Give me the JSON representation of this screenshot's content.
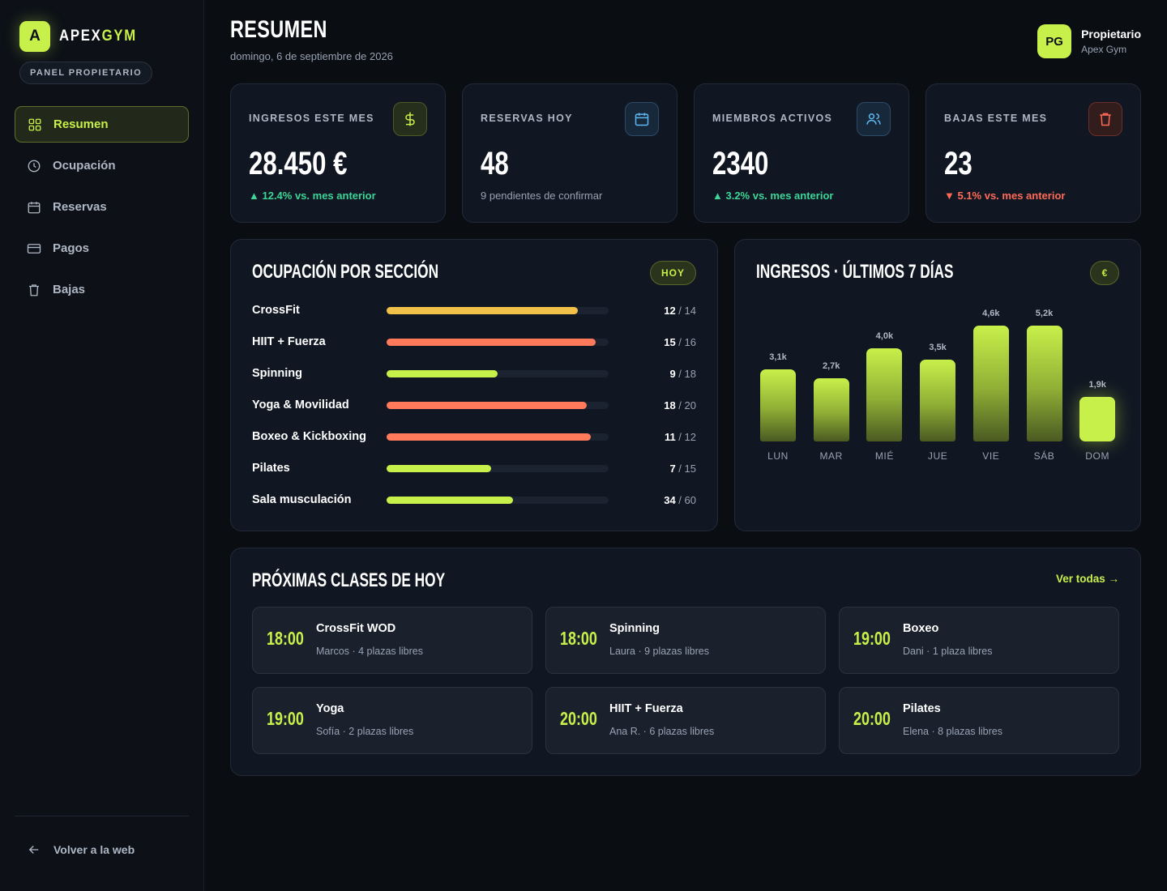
{
  "brand": {
    "mark": "A",
    "name_part1": "APEX",
    "name_part2": "GYM",
    "panel_label": "PANEL PROPIETARIO"
  },
  "nav": {
    "items": [
      {
        "label": "Resumen",
        "icon": "grid-icon",
        "active": true
      },
      {
        "label": "Ocupación",
        "icon": "clock-icon",
        "active": false
      },
      {
        "label": "Reservas",
        "icon": "calendar-icon",
        "active": false
      },
      {
        "label": "Pagos",
        "icon": "card-icon",
        "active": false
      },
      {
        "label": "Bajas",
        "icon": "trash-icon",
        "active": false
      }
    ],
    "back_label": "Volver a la web"
  },
  "header": {
    "title": "RESUMEN",
    "date": "domingo, 6 de septiembre de 2026",
    "owner_initials": "PG",
    "owner_role": "Propietario",
    "owner_gym": "Apex Gym"
  },
  "stats": [
    {
      "label": "INGRESOS ESTE MES",
      "value": "28.450 €",
      "delta": "12.4% vs. mes anterior",
      "trend": "up",
      "icon": "dollar-icon",
      "color": "#c8f04a"
    },
    {
      "label": "RESERVAS HOY",
      "value": "48",
      "sub": "9 pendientes de confirmar",
      "icon": "calendar-icon",
      "color": "#5db8f0"
    },
    {
      "label": "MIEMBROS ACTIVOS",
      "value": "2340",
      "delta": "3.2% vs. mes anterior",
      "trend": "up",
      "icon": "users-icon",
      "color": "#5db8f0"
    },
    {
      "label": "BAJAS ESTE MES",
      "value": "23",
      "delta": "5.1% vs. mes anterior",
      "trend": "down",
      "icon": "trash-icon",
      "color": "#ff6b57"
    }
  ],
  "occupancy": {
    "title": "OCUPACIÓN POR SECCIÓN",
    "badge": "HOY",
    "rows": [
      {
        "name": "CrossFit",
        "used": "12",
        "total": "14",
        "ratio": 0.86,
        "color": "#f2c14a"
      },
      {
        "name": "HIIT + Fuerza",
        "used": "15",
        "total": "16",
        "ratio": 0.94,
        "color": "#ff7a5a"
      },
      {
        "name": "Spinning",
        "used": "9",
        "total": "18",
        "ratio": 0.5,
        "color": "#c8f04a"
      },
      {
        "name": "Yoga & Movilidad",
        "used": "18",
        "total": "20",
        "ratio": 0.9,
        "color": "#ff7a5a"
      },
      {
        "name": "Boxeo & Kickboxing",
        "used": "11",
        "total": "12",
        "ratio": 0.92,
        "color": "#ff7a5a"
      },
      {
        "name": "Pilates",
        "used": "7",
        "total": "15",
        "ratio": 0.47,
        "color": "#c8f04a"
      },
      {
        "name": "Sala musculación",
        "used": "34",
        "total": "60",
        "ratio": 0.57,
        "color": "#c8f04a"
      }
    ]
  },
  "revenue": {
    "title": "INGRESOS · ÚLTIMOS 7 DÍAS",
    "badge": "€",
    "chart_data": {
      "type": "bar",
      "categories": [
        "LUN",
        "MAR",
        "MIÉ",
        "JUE",
        "VIE",
        "SÁB",
        "DOM"
      ],
      "values": [
        3.1,
        2.7,
        4.0,
        3.5,
        4.6,
        5.2,
        1.9
      ],
      "labels": [
        "3,1k",
        "2,7k",
        "4,0k",
        "3,5k",
        "4,6k",
        "5,2k",
        "1,9k"
      ],
      "highlight_index": 6
    }
  },
  "classes": {
    "title": "PRÓXIMAS CLASES DE HOY",
    "view_all": "Ver todas →",
    "items": [
      {
        "time": "18:00",
        "name": "CrossFit WOD",
        "meta": "Marcos · 4 plazas libres"
      },
      {
        "time": "18:00",
        "name": "Spinning",
        "meta": "Laura · 9 plazas libres"
      },
      {
        "time": "19:00",
        "name": "Boxeo",
        "meta": "Dani · 1 plaza libres"
      },
      {
        "time": "19:00",
        "name": "Yoga",
        "meta": "Sofía · 2 plazas libres"
      },
      {
        "time": "20:00",
        "name": "HIIT + Fuerza",
        "meta": "Ana R. · 6 plazas libres"
      },
      {
        "time": "20:00",
        "name": "Pilates",
        "meta": "Elena · 8 plazas libres"
      }
    ]
  }
}
